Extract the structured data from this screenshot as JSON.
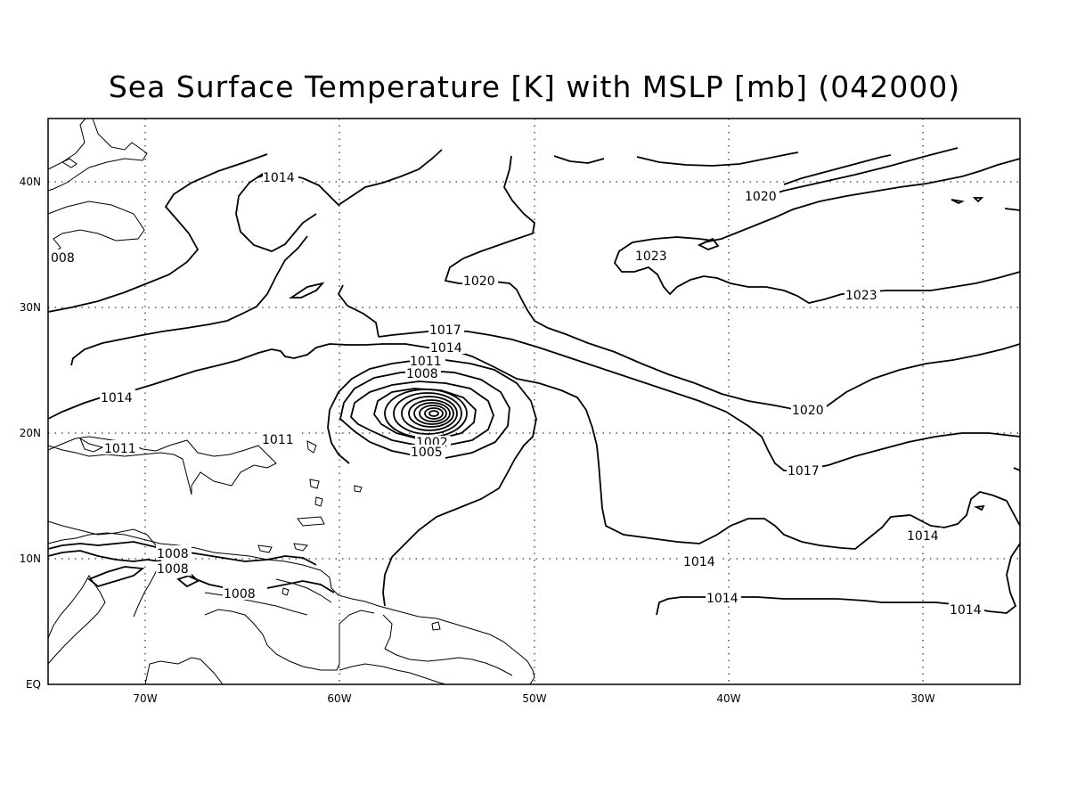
{
  "title": "Sea Surface Temperature [K] with MSLP [mb] (042000)",
  "map": {
    "projection": "lat-lon",
    "lon_range": [
      "75W",
      "25W"
    ],
    "lat_range": [
      "EQ",
      "45N"
    ],
    "grid": "dotted",
    "field": "MSLP",
    "units": "mb"
  },
  "axes": {
    "x_ticks": [
      "70W",
      "60W",
      "50W",
      "40W",
      "30W"
    ],
    "y_ticks": [
      "EQ",
      "10N",
      "20N",
      "30N",
      "40N"
    ]
  },
  "contour_labels": [
    {
      "id": "c1014-nw",
      "text": "1014"
    },
    {
      "id": "c1008-w",
      "text": "008"
    },
    {
      "id": "c1020-ne",
      "text": "1020"
    },
    {
      "id": "c1023-a",
      "text": "1023"
    },
    {
      "id": "c1023-b",
      "text": "1023"
    },
    {
      "id": "c1020-mid",
      "text": "1020"
    },
    {
      "id": "c1017-mid",
      "text": "1017"
    },
    {
      "id": "c1014-mid",
      "text": "1014"
    },
    {
      "id": "c1011-mid",
      "text": "1011"
    },
    {
      "id": "c1008-mid",
      "text": "1008"
    },
    {
      "id": "c1014-w",
      "text": "1014"
    },
    {
      "id": "c1011-w",
      "text": "1011"
    },
    {
      "id": "c1011-c",
      "text": "1011"
    },
    {
      "id": "c1002",
      "text": "1002"
    },
    {
      "id": "c1005",
      "text": "1005"
    },
    {
      "id": "c1020-e",
      "text": "1020"
    },
    {
      "id": "c1017-e",
      "text": "1017"
    },
    {
      "id": "c1014-e",
      "text": "1014"
    },
    {
      "id": "c1014-s",
      "text": "1014"
    },
    {
      "id": "c1014-ss",
      "text": "1014"
    },
    {
      "id": "c1014-se",
      "text": "1014"
    },
    {
      "id": "c1008-a",
      "text": "1008"
    },
    {
      "id": "c1008-b",
      "text": "1008"
    },
    {
      "id": "c1008-c",
      "text": "1008"
    }
  ],
  "colors": {
    "line": "#000000",
    "background": "#ffffff"
  }
}
